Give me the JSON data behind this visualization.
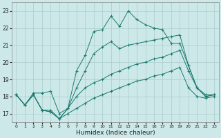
{
  "xlabel": "Humidex (Indice chaleur)",
  "xlim": [
    -0.5,
    23.5
  ],
  "ylim": [
    16.5,
    23.5
  ],
  "yticks": [
    17,
    18,
    19,
    20,
    21,
    22,
    23
  ],
  "xticks": [
    0,
    1,
    2,
    3,
    4,
    5,
    6,
    7,
    8,
    9,
    10,
    11,
    12,
    13,
    14,
    15,
    16,
    17,
    18,
    19,
    20,
    21,
    22,
    23
  ],
  "bg_color": "#cce8e8",
  "grid_color": "#aacccc",
  "line_color": "#1a7a6e",
  "series": [
    {
      "x": [
        0,
        1,
        2,
        3,
        4,
        5,
        6,
        7,
        8,
        9,
        10,
        11,
        12,
        13,
        14,
        15,
        16,
        17,
        18,
        19,
        20,
        21,
        22,
        23
      ],
      "y": [
        18.1,
        17.5,
        18.1,
        17.2,
        17.1,
        16.7,
        17.3,
        19.5,
        20.4,
        21.8,
        21.9,
        22.7,
        22.1,
        23.0,
        22.5,
        22.2,
        22.0,
        21.9,
        21.1,
        21.1,
        19.8,
        18.5,
        18.0,
        18.1
      ]
    },
    {
      "x": [
        0,
        1,
        2,
        3,
        4,
        5,
        6,
        7,
        8,
        9,
        10,
        11,
        12,
        13,
        14,
        15,
        16,
        17,
        18,
        19,
        20,
        21,
        22,
        23
      ],
      "y": [
        18.1,
        17.5,
        18.2,
        18.2,
        18.3,
        17.0,
        17.3,
        18.5,
        19.5,
        20.5,
        20.9,
        21.2,
        20.8,
        21.0,
        21.1,
        21.2,
        21.3,
        21.4,
        21.5,
        21.6,
        19.8,
        18.5,
        18.0,
        18.1
      ]
    },
    {
      "x": [
        0,
        1,
        2,
        3,
        4,
        5,
        6,
        7,
        8,
        9,
        10,
        11,
        12,
        13,
        14,
        15,
        16,
        17,
        18,
        19,
        20,
        21,
        22,
        23
      ],
      "y": [
        18.1,
        17.5,
        18.1,
        17.2,
        17.2,
        16.7,
        17.3,
        18.0,
        18.5,
        18.8,
        19.0,
        19.3,
        19.5,
        19.7,
        19.9,
        20.0,
        20.2,
        20.3,
        20.5,
        20.7,
        19.5,
        18.5,
        18.1,
        18.1
      ]
    },
    {
      "x": [
        0,
        1,
        2,
        3,
        4,
        5,
        6,
        7,
        8,
        9,
        10,
        11,
        12,
        13,
        14,
        15,
        16,
        17,
        18,
        19,
        20,
        21,
        22,
        23
      ],
      "y": [
        18.1,
        17.5,
        18.1,
        17.2,
        17.1,
        16.7,
        17.0,
        17.3,
        17.6,
        17.9,
        18.1,
        18.3,
        18.5,
        18.7,
        18.9,
        19.0,
        19.2,
        19.3,
        19.5,
        19.7,
        18.5,
        18.0,
        17.9,
        18.0
      ]
    }
  ]
}
